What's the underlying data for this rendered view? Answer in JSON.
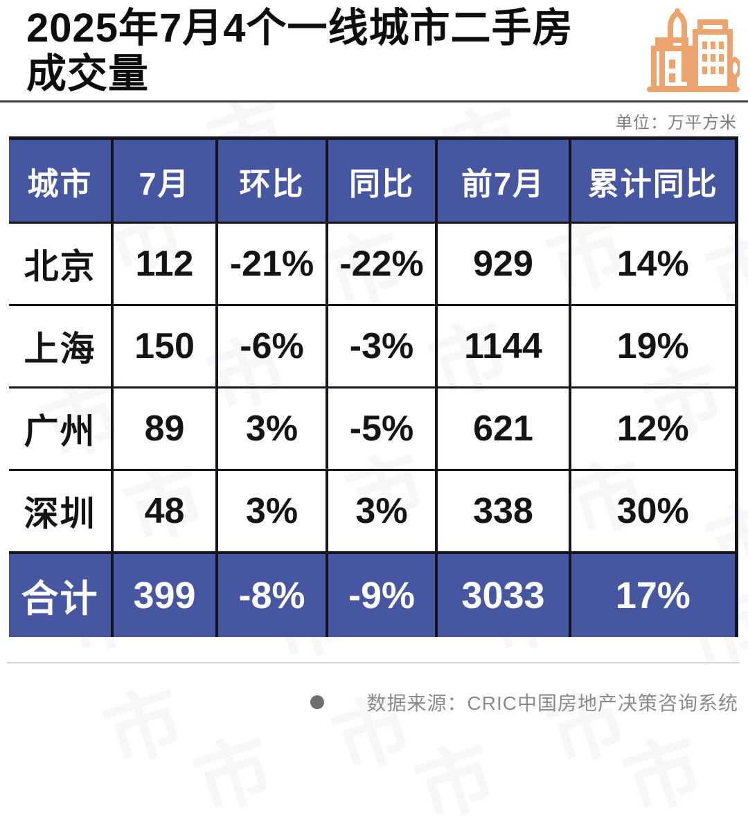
{
  "page": {
    "title_line1": "2025年7月4个一线城市二手房",
    "title_line2": "成交量",
    "unit_label": "单位：万平方米"
  },
  "colors": {
    "accent_blue": "#4656A0",
    "icon_orange": "#ECA46F",
    "grid_border": "#14151C",
    "muted_gray": "#8B8B8B"
  },
  "table": {
    "headers": [
      "城市",
      "7月",
      "环比",
      "同比",
      "前7月",
      "累计同比"
    ],
    "rows": [
      [
        "北京",
        "112",
        "-21%",
        "-22%",
        "929",
        "14%"
      ],
      [
        "上海",
        "150",
        "-6%",
        "-3%",
        "1144",
        "19%"
      ],
      [
        "广州",
        "89",
        "3%",
        "-5%",
        "621",
        "12%"
      ],
      [
        "深圳",
        "48",
        "3%",
        "3%",
        "338",
        "30%"
      ]
    ],
    "total_row": [
      "合计",
      "399",
      "-8%",
      "-9%",
      "3033",
      "17%"
    ]
  },
  "footer": {
    "source": "数据来源：CRIC中国房地产决策咨询系统"
  },
  "watermark": {
    "glyph": "市"
  },
  "chart_data": {
    "type": "table",
    "title": "2025年7月4个一线城市二手房成交量",
    "unit": "万平方米",
    "columns": [
      "城市",
      "7月",
      "环比",
      "同比",
      "前7月",
      "累计同比"
    ],
    "rows": [
      [
        "北京",
        112,
        "-21%",
        "-22%",
        929,
        "14%"
      ],
      [
        "上海",
        150,
        "-6%",
        "-3%",
        1144,
        "19%"
      ],
      [
        "广州",
        89,
        "3%",
        "-5%",
        621,
        "12%"
      ],
      [
        "深圳",
        48,
        "3%",
        "3%",
        338,
        "30%"
      ],
      [
        "合计",
        399,
        "-8%",
        "-9%",
        3033,
        "17%"
      ]
    ],
    "source": "CRIC中国房地产决策咨询系统"
  }
}
